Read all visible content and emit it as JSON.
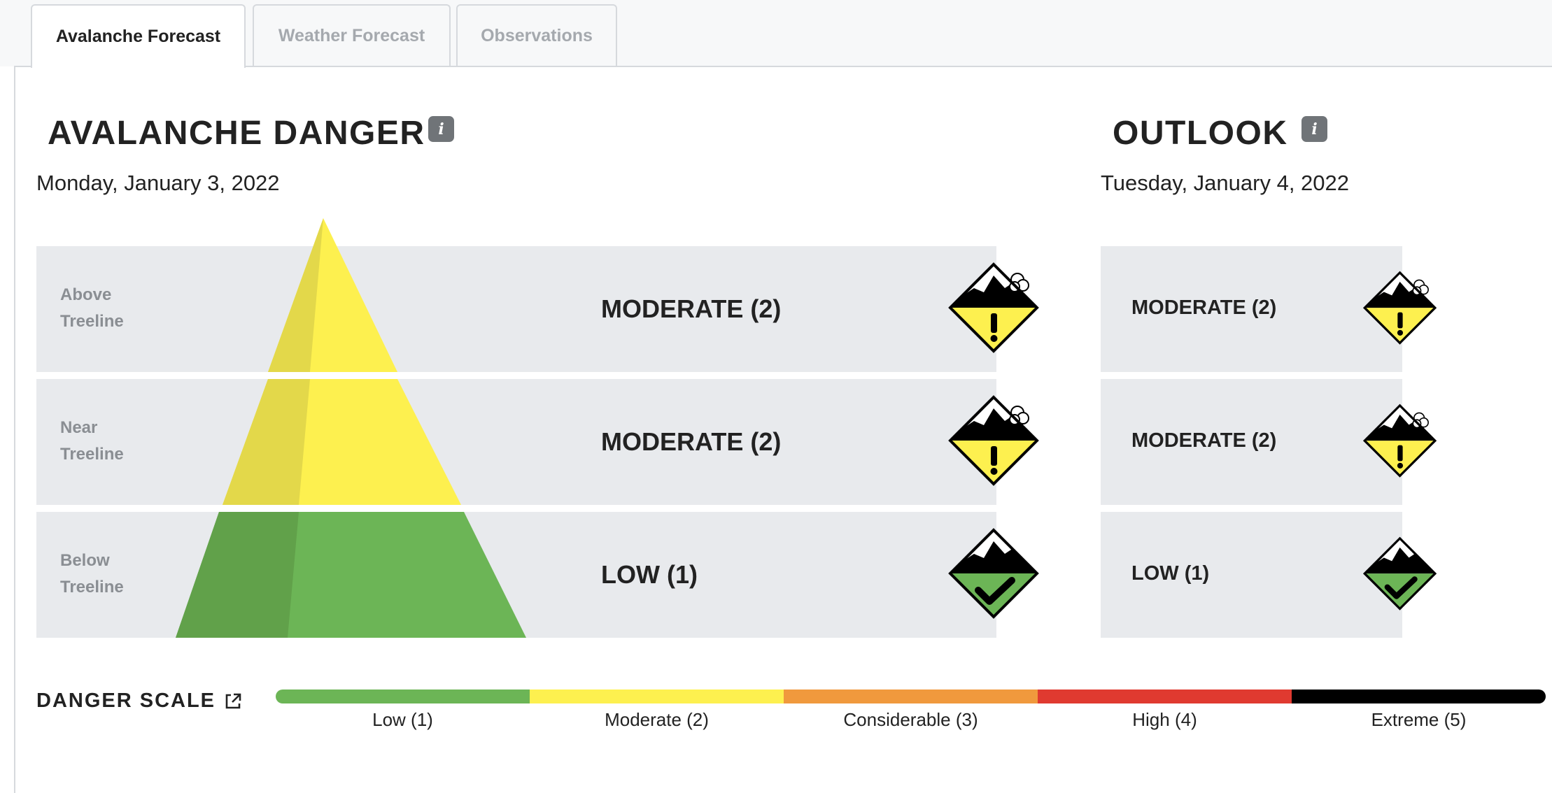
{
  "tabs": [
    {
      "label": "Avalanche Forecast",
      "active": true
    },
    {
      "label": "Weather Forecast",
      "active": false
    },
    {
      "label": "Observations",
      "active": false
    }
  ],
  "danger": {
    "title": "AVALANCHE DANGER",
    "info_icon": "info-icon",
    "date": "Monday, January 3, 2022",
    "rows": [
      {
        "elevation_line1": "Above",
        "elevation_line2": "Treeline",
        "level": "MODERATE (2)",
        "rating": 2,
        "icon": "moderate-danger-icon"
      },
      {
        "elevation_line1": "Near",
        "elevation_line2": "Treeline",
        "level": "MODERATE (2)",
        "rating": 2,
        "icon": "moderate-danger-icon"
      },
      {
        "elevation_line1": "Below",
        "elevation_line2": "Treeline",
        "level": "LOW (1)",
        "rating": 1,
        "icon": "low-danger-icon"
      }
    ]
  },
  "outlook": {
    "title": "OUTLOOK",
    "info_icon": "info-icon",
    "date": "Tuesday, January 4, 2022",
    "rows": [
      {
        "level": "MODERATE (2)",
        "rating": 2,
        "icon": "moderate-danger-icon"
      },
      {
        "level": "MODERATE (2)",
        "rating": 2,
        "icon": "moderate-danger-icon"
      },
      {
        "level": "LOW (1)",
        "rating": 1,
        "icon": "low-danger-icon"
      }
    ]
  },
  "danger_scale": {
    "title": "DANGER SCALE",
    "link_icon": "external-link-icon",
    "levels": [
      {
        "label": "Low (1)",
        "color": "#6cb556"
      },
      {
        "label": "Moderate (2)",
        "color": "#fdf04f"
      },
      {
        "label": "Considerable (3)",
        "color": "#f0993d"
      },
      {
        "label": "High (4)",
        "color": "#e03a30"
      },
      {
        "label": "Extreme (5)",
        "color": "#000000"
      }
    ]
  },
  "colors": {
    "moderate": "#fdf04f",
    "moderate_shade": "#e3d84a",
    "low": "#6cb556",
    "low_shade": "#61a14a",
    "row_bg": "#e8eaed"
  }
}
